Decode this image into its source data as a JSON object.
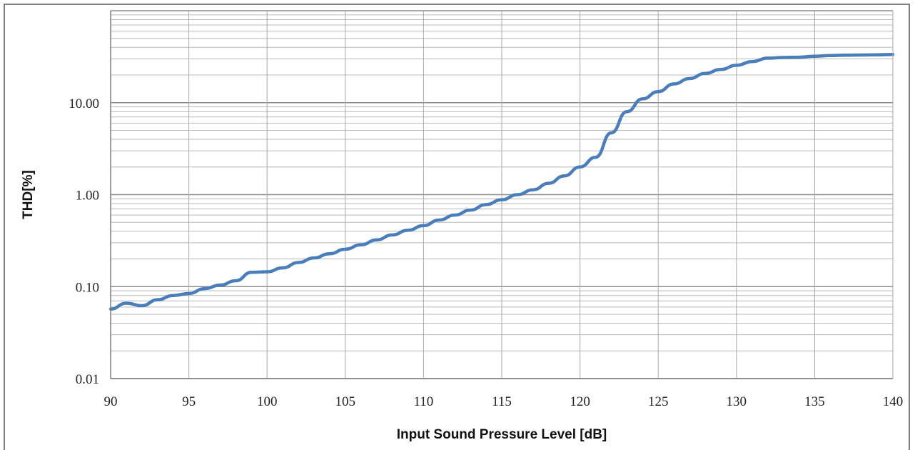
{
  "chart_data": {
    "type": "line",
    "title": "",
    "xlabel": "Input Sound Pressure Level [dB]",
    "ylabel": "THD[%]",
    "xlim": [
      90,
      140
    ],
    "ylim": [
      0.01,
      100
    ],
    "y_scale": "log",
    "grid": true,
    "legend": "none",
    "x_ticks": [
      90,
      95,
      100,
      105,
      110,
      115,
      120,
      125,
      130,
      135,
      140
    ],
    "x_tick_labels": [
      "90",
      "95",
      "100",
      "105",
      "110",
      "115",
      "120",
      "125",
      "130",
      "135",
      "140"
    ],
    "y_ticks": [
      0.01,
      0.1,
      1,
      10
    ],
    "y_tick_labels": [
      "0.01",
      "0.10",
      "1.00",
      "10.00"
    ],
    "series": [
      {
        "color": "#4a7ebb",
        "x": [
          90,
          91,
          92,
          93,
          94,
          95,
          96,
          97,
          98,
          99,
          100,
          101,
          102,
          103,
          104,
          105,
          106,
          107,
          108,
          109,
          110,
          111,
          112,
          113,
          114,
          115,
          116,
          117,
          118,
          119,
          120,
          121,
          122,
          123,
          124,
          125,
          126,
          127,
          128,
          129,
          130,
          131,
          132,
          133,
          134,
          135,
          136,
          137,
          138,
          139,
          140
        ],
        "y": [
          0.057,
          0.066,
          0.062,
          0.072,
          0.08,
          0.084,
          0.095,
          0.104,
          0.116,
          0.143,
          0.145,
          0.16,
          0.183,
          0.205,
          0.228,
          0.255,
          0.285,
          0.322,
          0.365,
          0.41,
          0.46,
          0.53,
          0.6,
          0.68,
          0.78,
          0.88,
          1.0,
          1.13,
          1.33,
          1.6,
          2.0,
          2.55,
          4.7,
          8.0,
          11.0,
          13.2,
          16.0,
          18.3,
          20.8,
          23.0,
          25.5,
          28.0,
          30.5,
          31.0,
          31.2,
          32.0,
          32.5,
          32.8,
          33.0,
          33.2,
          33.5
        ]
      }
    ]
  }
}
